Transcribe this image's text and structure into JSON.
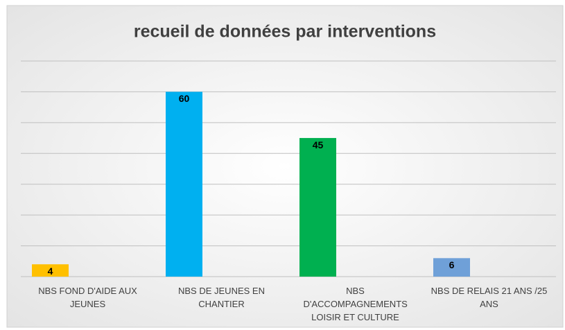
{
  "chart_data": {
    "type": "bar",
    "title": "recueil de données par interventions",
    "categories": [
      "NBS FOND D'AIDE AUX JEUNES",
      "NBS DE JEUNES EN CHANTIER",
      "NBS D'ACCOMPAGNEMENTS LOISIR ET CULTURE",
      "NBS DE RELAIS 21 ANS /25 ANS"
    ],
    "values": [
      4,
      60,
      45,
      6
    ],
    "colors": [
      "#ffc000",
      "#00b0f0",
      "#00b050",
      "#6fa0d8"
    ],
    "ylim": [
      0,
      70
    ],
    "yticks": [
      0,
      10,
      20,
      30,
      40,
      50,
      60,
      70
    ],
    "grid": true
  }
}
